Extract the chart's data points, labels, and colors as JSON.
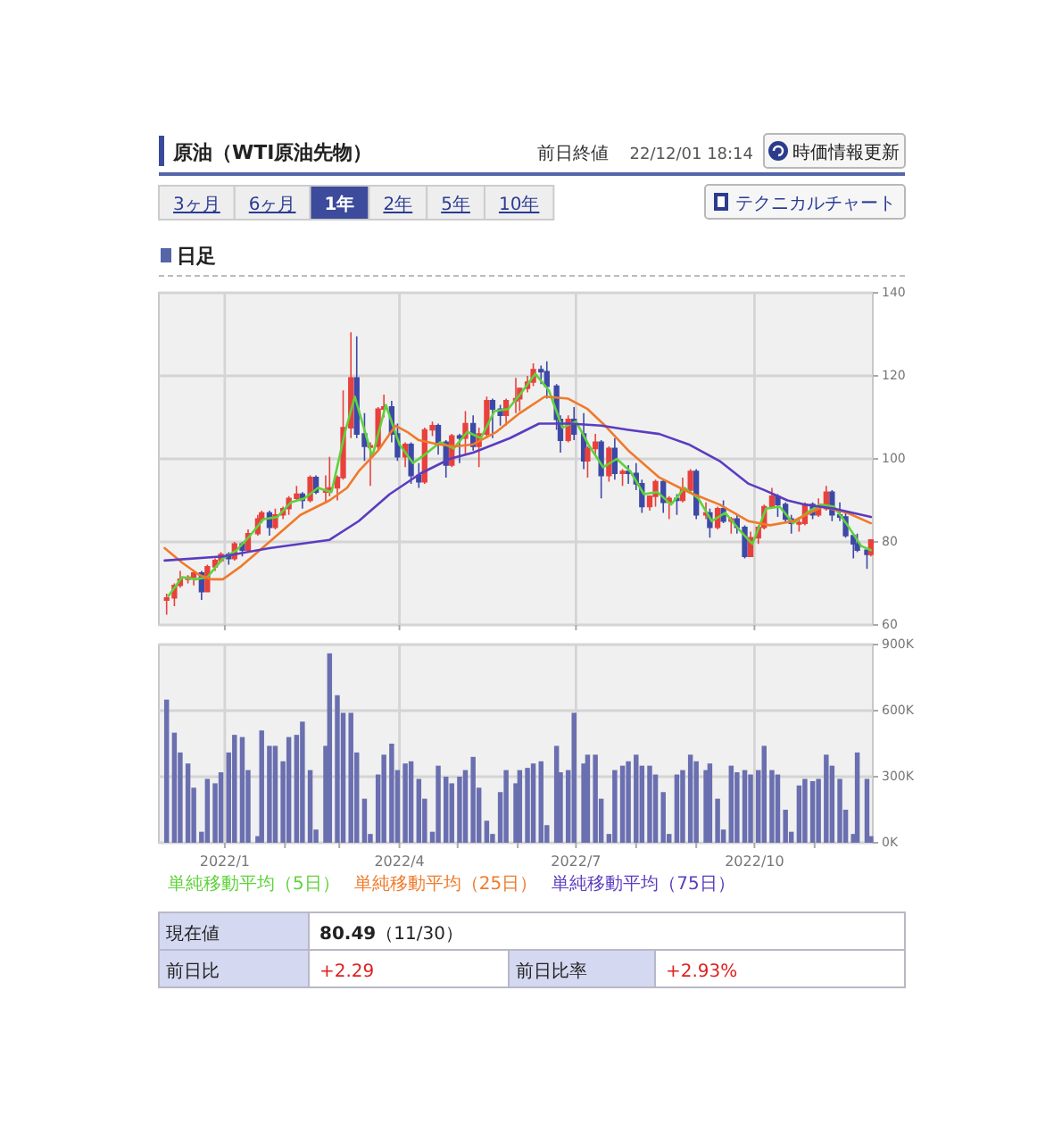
{
  "chart_data": [
    {
      "type": "other",
      "title": "原油（WTI原油先物）",
      "annotations": [
        "前日終値",
        "22/12/01 18:14",
        "時価情報更新",
        "3ヶ月",
        "6ヶ月",
        "1年",
        "2年",
        "5年",
        "10年",
        "テクニカルチャート"
      ]
    },
    {
      "type": "candlestick",
      "title": "日足",
      "x": [
        "2021-12-02",
        "2021-12-06",
        "2021-12-09",
        "2021-12-13",
        "2021-12-16",
        "2021-12-20",
        "2021-12-23",
        "2021-12-27",
        "2021-12-30",
        "2022-01-03",
        "2022-01-06",
        "2022-01-10",
        "2022-01-13",
        "2022-01-18",
        "2022-01-20",
        "2022-01-24",
        "2022-01-27",
        "2022-01-31",
        "2022-02-03",
        "2022-02-07",
        "2022-02-10",
        "2022-02-14",
        "2022-02-17",
        "2022-02-22",
        "2022-02-24",
        "2022-02-28",
        "2022-03-03",
        "2022-03-07",
        "2022-03-10",
        "2022-03-14",
        "2022-03-17",
        "2022-03-21",
        "2022-03-24",
        "2022-03-28",
        "2022-03-31",
        "2022-04-04",
        "2022-04-07",
        "2022-04-11",
        "2022-04-14",
        "2022-04-18",
        "2022-04-21",
        "2022-04-25",
        "2022-04-28",
        "2022-05-02",
        "2022-05-05",
        "2022-05-09",
        "2022-05-12",
        "2022-05-16",
        "2022-05-19",
        "2022-05-23",
        "2022-05-26",
        "2022-05-31",
        "2022-06-02",
        "2022-06-06",
        "2022-06-09",
        "2022-06-13",
        "2022-06-16",
        "2022-06-21",
        "2022-06-23",
        "2022-06-27",
        "2022-06-30",
        "2022-07-05",
        "2022-07-07",
        "2022-07-11",
        "2022-07-14",
        "2022-07-18",
        "2022-07-21",
        "2022-07-25",
        "2022-07-28",
        "2022-08-01",
        "2022-08-04",
        "2022-08-08",
        "2022-08-11",
        "2022-08-15",
        "2022-08-18",
        "2022-08-22",
        "2022-08-25",
        "2022-08-29",
        "2022-09-01",
        "2022-09-06",
        "2022-09-08",
        "2022-09-12",
        "2022-09-15",
        "2022-09-19",
        "2022-09-22",
        "2022-09-26",
        "2022-09-29",
        "2022-10-03",
        "2022-10-06",
        "2022-10-10",
        "2022-10-13",
        "2022-10-17",
        "2022-10-20",
        "2022-10-24",
        "2022-10-27",
        "2022-10-31",
        "2022-11-03",
        "2022-11-07",
        "2022-11-10",
        "2022-11-14",
        "2022-11-17",
        "2022-11-21",
        "2022-11-23",
        "2022-11-28",
        "2022-11-30"
      ],
      "ohlc": [
        [
          66,
          67.5,
          62.5,
          66.5
        ],
        [
          66.5,
          70,
          64.5,
          69.5
        ],
        [
          69.5,
          73,
          69,
          71
        ],
        [
          71,
          72,
          70,
          71.5
        ],
        [
          71.5,
          73,
          69.5,
          72.5
        ],
        [
          72.5,
          73,
          66,
          68
        ],
        [
          68,
          74.5,
          68,
          74
        ],
        [
          74,
          76,
          73,
          75.5
        ],
        [
          75.5,
          77.5,
          75,
          77
        ],
        [
          77,
          77.5,
          74.5,
          76
        ],
        [
          76,
          80,
          75.5,
          79.5
        ],
        [
          79.5,
          80,
          76.5,
          78
        ],
        [
          78,
          83,
          77.5,
          82
        ],
        [
          82,
          86.5,
          81.5,
          85.5
        ],
        [
          85.5,
          87.5,
          84.5,
          87
        ],
        [
          87,
          87.5,
          81.5,
          83.5
        ],
        [
          83.5,
          88,
          83,
          86.5
        ],
        [
          86.5,
          88.5,
          85.5,
          88
        ],
        [
          88,
          91,
          86.5,
          90.5
        ],
        [
          90.5,
          93.5,
          90,
          91.5
        ],
        [
          91.5,
          92,
          88,
          90
        ],
        [
          90,
          96,
          89.5,
          95.5
        ],
        [
          95.5,
          96,
          91.5,
          92
        ],
        [
          92,
          96,
          89.5,
          92.5
        ],
        [
          92.5,
          100.5,
          91,
          93
        ],
        [
          93,
          96,
          90,
          95.5
        ],
        [
          95.5,
          116.5,
          95,
          107.5
        ],
        [
          107.5,
          130.5,
          105,
          119.5
        ],
        [
          119.5,
          129.5,
          105,
          106
        ],
        [
          106,
          111,
          99.5,
          103
        ],
        [
          103,
          104,
          93.5,
          103
        ],
        [
          103,
          112.5,
          102,
          112
        ],
        [
          112,
          115.5,
          110,
          112.5
        ],
        [
          112.5,
          114,
          104,
          106
        ],
        [
          106,
          108.5,
          99.5,
          100.5
        ],
        [
          100.5,
          104,
          98,
          103.5
        ],
        [
          103.5,
          104,
          94,
          96
        ],
        [
          96,
          99,
          93,
          94.5
        ],
        [
          94.5,
          107.5,
          94,
          107
        ],
        [
          107,
          109,
          105.5,
          108
        ],
        [
          108,
          108.5,
          101,
          104
        ],
        [
          104,
          104.5,
          95.5,
          98.5
        ],
        [
          98.5,
          106,
          98,
          105.5
        ],
        [
          105.5,
          106,
          99,
          105
        ],
        [
          105,
          111.5,
          101,
          108.5
        ],
        [
          108.5,
          110.5,
          102,
          103
        ],
        [
          103,
          107.5,
          98,
          106
        ],
        [
          106,
          115,
          105,
          114
        ],
        [
          114,
          114.5,
          105,
          112
        ],
        [
          112,
          113,
          108,
          110.5
        ],
        [
          110.5,
          114.5,
          108,
          114
        ],
        [
          114,
          119.5,
          111,
          114.5
        ],
        [
          114.5,
          117,
          111.5,
          117
        ],
        [
          117,
          120,
          116,
          118.5
        ],
        [
          118.5,
          123,
          117.5,
          121.5
        ],
        [
          121.5,
          122.5,
          118,
          121
        ],
        [
          121,
          123.5,
          114.5,
          117.5
        ],
        [
          117.5,
          118,
          107,
          109.5
        ],
        [
          109.5,
          110.5,
          101.5,
          104.5
        ],
        [
          104.5,
          110.5,
          104,
          109.5
        ],
        [
          109.5,
          112.5,
          104.5,
          106
        ],
        [
          106,
          111,
          97.5,
          99.5
        ],
        [
          99.5,
          103,
          95.5,
          102.5
        ],
        [
          102.5,
          106,
          101,
          104
        ],
        [
          104,
          104.5,
          90.5,
          96
        ],
        [
          96,
          103,
          94.5,
          102.5
        ],
        [
          102.5,
          105,
          95,
          96.5
        ],
        [
          96.5,
          97.5,
          93.5,
          97
        ],
        [
          97,
          98.5,
          94,
          96.5
        ],
        [
          96.5,
          99,
          92.5,
          94
        ],
        [
          94,
          95,
          87,
          88.5
        ],
        [
          88.5,
          91,
          87.5,
          91
        ],
        [
          91,
          95,
          88.5,
          94.5
        ],
        [
          94.5,
          95,
          87,
          89.5
        ],
        [
          89.5,
          91,
          85.5,
          90.5
        ],
        [
          90.5,
          91.5,
          86.5,
          90
        ],
        [
          90,
          95.5,
          89.5,
          92.5
        ],
        [
          92.5,
          97.5,
          92,
          97
        ],
        [
          97,
          97.5,
          85.5,
          86.5
        ],
        [
          86.5,
          89.5,
          85.5,
          87
        ],
        [
          87,
          88,
          81,
          83.5
        ],
        [
          83.5,
          88.5,
          83,
          88
        ],
        [
          88,
          90,
          84.5,
          85
        ],
        [
          85,
          86,
          82,
          85.5
        ],
        [
          85.5,
          86.5,
          82,
          83.5
        ],
        [
          83.5,
          84,
          76,
          76.5
        ],
        [
          76.5,
          82.5,
          76.5,
          81
        ],
        [
          81,
          84,
          79.5,
          83.5
        ],
        [
          83.5,
          89,
          83,
          88.5
        ],
        [
          88.5,
          93,
          88,
          91
        ],
        [
          91,
          91.5,
          86,
          89
        ],
        [
          89,
          89.5,
          84.5,
          85.5
        ],
        [
          85.5,
          86.5,
          82,
          84.5
        ],
        [
          84.5,
          86,
          82.5,
          84.5
        ],
        [
          84.5,
          89.5,
          84,
          89
        ],
        [
          89,
          89.5,
          85.5,
          86.5
        ],
        [
          86.5,
          90.5,
          86,
          88
        ],
        [
          88,
          93.5,
          87.5,
          92
        ],
        [
          92,
          92.5,
          85,
          86.5
        ],
        [
          86.5,
          89.5,
          85,
          86
        ],
        [
          86,
          87.5,
          81,
          81.5
        ],
        [
          81.5,
          82,
          76,
          79.5
        ],
        [
          79.5,
          82,
          77.5,
          78
        ],
        [
          78,
          78.5,
          73.5,
          77
        ],
        [
          77,
          80.5,
          76.5,
          80.49
        ]
      ],
      "colors": [
        "#e8413c",
        "#e8413c",
        "#e8413c",
        "#e8413c",
        "#e8413c",
        "#3d49a6",
        "#e8413c",
        "#e8413c",
        "#e8413c",
        "#3d49a6",
        "#e8413c",
        "#3d49a6",
        "#e8413c",
        "#e8413c",
        "#e8413c",
        "#3d49a6",
        "#e8413c",
        "#e8413c",
        "#e8413c",
        "#e8413c",
        "#3d49a6",
        "#e8413c",
        "#3d49a6",
        "#e8413c",
        "#e8413c",
        "#e8413c",
        "#e8413c",
        "#e8413c",
        "#3d49a6",
        "#3d49a6",
        "#e8413c",
        "#e8413c",
        "#e8413c",
        "#3d49a6",
        "#3d49a6",
        "#e8413c",
        "#3d49a6",
        "#3d49a6",
        "#e8413c",
        "#e8413c",
        "#3d49a6",
        "#3d49a6",
        "#e8413c",
        "#3d49a6",
        "#e8413c",
        "#3d49a6",
        "#e8413c",
        "#e8413c",
        "#3d49a6",
        "#3d49a6",
        "#e8413c",
        "#e8413c",
        "#e8413c",
        "#e8413c",
        "#e8413c",
        "#3d49a6",
        "#3d49a6",
        "#3d49a6",
        "#3d49a6",
        "#e8413c",
        "#3d49a6",
        "#3d49a6",
        "#e8413c",
        "#e8413c",
        "#3d49a6",
        "#e8413c",
        "#3d49a6",
        "#e8413c",
        "#3d49a6",
        "#3d49a6",
        "#3d49a6",
        "#e8413c",
        "#e8413c",
        "#3d49a6",
        "#e8413c",
        "#3d49a6",
        "#e8413c",
        "#e8413c",
        "#3d49a6",
        "#e8413c",
        "#3d49a6",
        "#e8413c",
        "#3d49a6",
        "#e8413c",
        "#3d49a6",
        "#3d49a6",
        "#e8413c",
        "#e8413c",
        "#e8413c",
        "#e8413c",
        "#3d49a6",
        "#3d49a6",
        "#3d49a6",
        "#e8413c",
        "#e8413c",
        "#3d49a6",
        "#e8413c",
        "#e8413c",
        "#3d49a6",
        "#3d49a6",
        "#3d49a6",
        "#3d49a6",
        "#3d49a6",
        "#3d49a6",
        "#e8413c"
      ],
      "series": [
        {
          "name": "単純移動平均（5日）",
          "type": "line",
          "color": "#5fd23c",
          "x": [
            "2021-12-03",
            "2021-12-10",
            "2021-12-17",
            "2021-12-23",
            "2021-12-31",
            "2022-01-07",
            "2022-01-14",
            "2022-01-21",
            "2022-01-28",
            "2022-02-04",
            "2022-02-11",
            "2022-02-18",
            "2022-02-25",
            "2022-03-04",
            "2022-03-09",
            "2022-03-18",
            "2022-03-25",
            "2022-04-01",
            "2022-04-08",
            "2022-04-14",
            "2022-04-22",
            "2022-04-29",
            "2022-05-06",
            "2022-05-13",
            "2022-05-20",
            "2022-05-27",
            "2022-06-03",
            "2022-06-10",
            "2022-06-17",
            "2022-06-24",
            "2022-07-01",
            "2022-07-08",
            "2022-07-15",
            "2022-07-22",
            "2022-07-29",
            "2022-08-05",
            "2022-08-12",
            "2022-08-19",
            "2022-08-26",
            "2022-09-02",
            "2022-09-09",
            "2022-09-16",
            "2022-09-23",
            "2022-09-30",
            "2022-10-07",
            "2022-10-14",
            "2022-10-21",
            "2022-10-28",
            "2022-11-04",
            "2022-11-11",
            "2022-11-18",
            "2022-11-25",
            "2022-11-30"
          ],
          "values": [
            67,
            71.5,
            71,
            71.5,
            76,
            78,
            81.5,
            85.5,
            86,
            89.5,
            90.5,
            93,
            92,
            106.5,
            115,
            100.5,
            113,
            103.5,
            99,
            101,
            104,
            102.5,
            106.5,
            105,
            111.5,
            112,
            116,
            120.5,
            116.5,
            107.5,
            109,
            103,
            98,
            100,
            97,
            91.5,
            92,
            89,
            93,
            90.5,
            85,
            87,
            83,
            79.5,
            88,
            88.5,
            84.5,
            87,
            89,
            88.5,
            84,
            79,
            78
          ]
        },
        {
          "name": "単純移動平均（25日）",
          "type": "line",
          "color": "#f07a2a",
          "x": [
            "2021-12-01",
            "2021-12-10",
            "2021-12-19",
            "2021-12-25",
            "2021-12-31",
            "2022-01-09",
            "2022-01-24",
            "2022-02-09",
            "2022-02-24",
            "2022-03-05",
            "2022-03-11",
            "2022-03-21",
            "2022-03-30",
            "2022-04-05",
            "2022-04-11",
            "2022-04-21",
            "2022-04-30",
            "2022-05-09",
            "2022-05-21",
            "2022-06-02",
            "2022-06-15",
            "2022-06-27",
            "2022-07-07",
            "2022-07-16",
            "2022-07-28",
            "2022-08-13",
            "2022-08-28",
            "2022-09-13",
            "2022-09-28",
            "2022-10-09",
            "2022-10-21",
            "2022-11-05",
            "2022-11-18",
            "2022-11-30"
          ],
          "values": [
            78.5,
            75,
            72,
            71,
            71,
            74,
            80,
            86.5,
            90,
            93,
            97,
            102,
            108,
            106.5,
            104.5,
            103.5,
            103,
            103.5,
            106.5,
            111,
            115,
            114.5,
            112,
            108,
            102,
            95.5,
            92,
            89,
            85,
            84,
            85,
            88.5,
            87,
            84.5
          ]
        },
        {
          "name": "単純移動平均（75日）",
          "type": "line",
          "color": "#5b3cc0",
          "x": [
            "2021-12-01",
            "2021-12-31",
            "2022-01-24",
            "2022-02-24",
            "2022-03-11",
            "2022-03-27",
            "2022-04-12",
            "2022-04-27",
            "2022-05-09",
            "2022-05-28",
            "2022-06-12",
            "2022-06-28",
            "2022-07-14",
            "2022-07-28",
            "2022-08-13",
            "2022-08-28",
            "2022-09-13",
            "2022-09-28",
            "2022-10-06",
            "2022-10-18",
            "2022-10-27",
            "2022-11-11",
            "2022-11-30"
          ],
          "values": [
            75.5,
            76.5,
            78.5,
            80.5,
            85,
            91.5,
            96.5,
            100,
            101.5,
            105,
            108.5,
            108.5,
            108,
            107,
            106,
            103.5,
            99.5,
            94,
            92.5,
            90,
            89,
            88,
            86
          ]
        }
      ],
      "xlim": [
        "2021-11-28",
        "2022-12-01"
      ],
      "xticks": [
        {
          "value": "2022-01-01",
          "label": null
        },
        {
          "value": "2022-04-01",
          "label": null
        },
        {
          "value": "2022-07-01",
          "label": null
        },
        {
          "value": "2022-10-01",
          "label": null
        }
      ],
      "ylim": [
        60,
        140
      ],
      "yticks": [
        60,
        80,
        100,
        120,
        140
      ],
      "grid": true,
      "legend": "bottom",
      "tick_labels": "y"
    },
    {
      "type": "bar",
      "x": [
        "2021-12-02",
        "2021-12-06",
        "2021-12-09",
        "2021-12-13",
        "2021-12-16",
        "2021-12-20",
        "2021-12-23",
        "2021-12-27",
        "2021-12-30",
        "2022-01-03",
        "2022-01-06",
        "2022-01-10",
        "2022-01-13",
        "2022-01-18",
        "2022-01-20",
        "2022-01-24",
        "2022-01-27",
        "2022-01-31",
        "2022-02-03",
        "2022-02-07",
        "2022-02-10",
        "2022-02-14",
        "2022-02-17",
        "2022-02-22",
        "2022-02-24",
        "2022-02-28",
        "2022-03-03",
        "2022-03-07",
        "2022-03-10",
        "2022-03-14",
        "2022-03-17",
        "2022-03-21",
        "2022-03-24",
        "2022-03-28",
        "2022-03-31",
        "2022-04-04",
        "2022-04-07",
        "2022-04-11",
        "2022-04-14",
        "2022-04-18",
        "2022-04-21",
        "2022-04-25",
        "2022-04-28",
        "2022-05-02",
        "2022-05-05",
        "2022-05-09",
        "2022-05-12",
        "2022-05-16",
        "2022-05-19",
        "2022-05-23",
        "2022-05-26",
        "2022-05-31",
        "2022-06-02",
        "2022-06-06",
        "2022-06-09",
        "2022-06-13",
        "2022-06-16",
        "2022-06-21",
        "2022-06-23",
        "2022-06-27",
        "2022-06-30",
        "2022-07-05",
        "2022-07-07",
        "2022-07-11",
        "2022-07-14",
        "2022-07-18",
        "2022-07-21",
        "2022-07-25",
        "2022-07-28",
        "2022-08-01",
        "2022-08-04",
        "2022-08-08",
        "2022-08-11",
        "2022-08-15",
        "2022-08-18",
        "2022-08-22",
        "2022-08-25",
        "2022-08-29",
        "2022-09-01",
        "2022-09-06",
        "2022-09-08",
        "2022-09-12",
        "2022-09-15",
        "2022-09-19",
        "2022-09-22",
        "2022-09-26",
        "2022-09-29",
        "2022-10-03",
        "2022-10-06",
        "2022-10-10",
        "2022-10-13",
        "2022-10-17",
        "2022-10-20",
        "2022-10-24",
        "2022-10-27",
        "2022-10-31",
        "2022-11-03",
        "2022-11-07",
        "2022-11-10",
        "2022-11-14",
        "2022-11-17",
        "2022-11-21",
        "2022-11-23",
        "2022-11-28",
        "2022-11-30"
      ],
      "values": [
        650000,
        500000,
        410000,
        360000,
        250000,
        50000,
        290000,
        270000,
        320000,
        410000,
        490000,
        480000,
        330000,
        30000,
        510000,
        440000,
        440000,
        370000,
        480000,
        490000,
        550000,
        330000,
        60000,
        440000,
        860000,
        670000,
        590000,
        590000,
        410000,
        200000,
        40000,
        310000,
        400000,
        450000,
        330000,
        360000,
        370000,
        290000,
        200000,
        50000,
        350000,
        300000,
        270000,
        300000,
        330000,
        390000,
        250000,
        100000,
        40000,
        230000,
        330000,
        270000,
        330000,
        340000,
        360000,
        370000,
        80000,
        440000,
        320000,
        330000,
        590000,
        360000,
        400000,
        400000,
        200000,
        40000,
        330000,
        350000,
        370000,
        400000,
        350000,
        350000,
        310000,
        230000,
        40000,
        310000,
        330000,
        400000,
        370000,
        330000,
        360000,
        200000,
        60000,
        350000,
        320000,
        330000,
        310000,
        330000,
        440000,
        330000,
        310000,
        150000,
        50000,
        260000,
        290000,
        280000,
        290000,
        400000,
        350000,
        290000,
        150000,
        40000,
        410000,
        290000,
        30000
      ],
      "color": "#6a6fb0",
      "xlim": [
        "2021-11-28",
        "2022-12-01"
      ],
      "xticks": [
        {
          "value": "2022-01-01",
          "label": "2022/1"
        },
        {
          "value": "2022-02-01",
          "label": null
        },
        {
          "value": "2022-03-01",
          "label": null
        },
        {
          "value": "2022-04-01",
          "label": "2022/4"
        },
        {
          "value": "2022-05-01",
          "label": null
        },
        {
          "value": "2022-06-01",
          "label": null
        },
        {
          "value": "2022-07-01",
          "label": "2022/7"
        },
        {
          "value": "2022-08-01",
          "label": null
        },
        {
          "value": "2022-09-01",
          "label": null
        },
        {
          "value": "2022-10-01",
          "label": "2022/10"
        },
        {
          "value": "2022-11-01",
          "label": null
        }
      ],
      "ylim": [
        0,
        900000
      ],
      "yticks": [
        {
          "value": 0,
          "label": "0K"
        },
        {
          "value": 300000,
          "label": "300K"
        },
        {
          "value": 600000,
          "label": "600K"
        },
        {
          "value": 900000,
          "label": "900K"
        }
      ],
      "grid": true
    },
    {
      "type": "other",
      "categories": [
        "現在値",
        "前日比",
        "前日比率"
      ],
      "values": [
        80.49,
        2.29,
        2.93
      ],
      "value_labels": [
        "**80.49**（11/30）",
        "+2.29",
        "+2.93%"
      ]
    }
  ]
}
